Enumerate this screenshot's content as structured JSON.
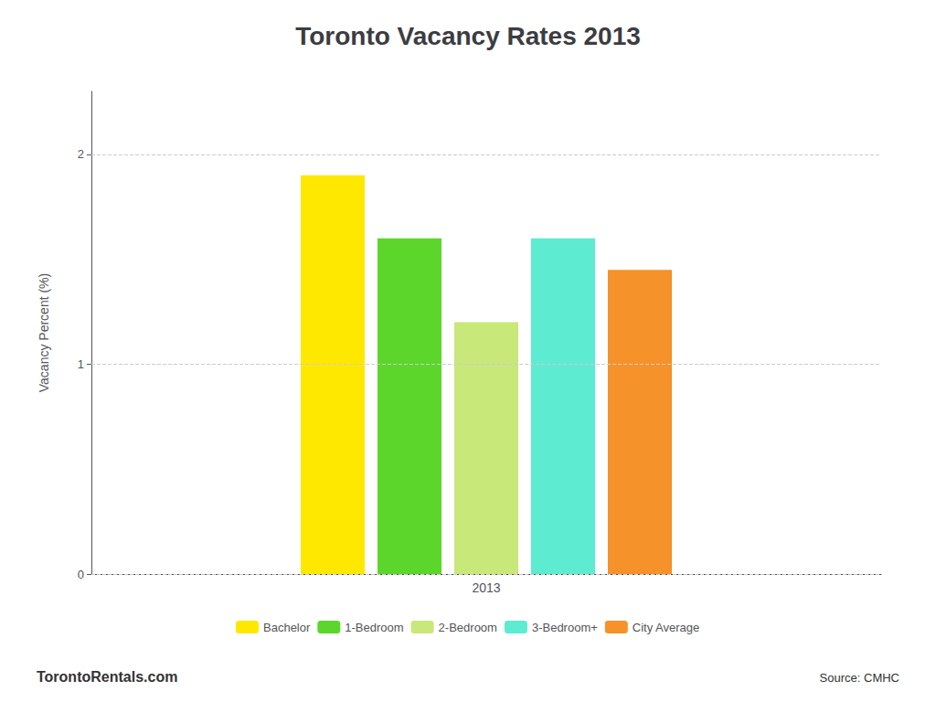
{
  "chart_data": {
    "type": "bar",
    "title": "Toronto Vacancy Rates 2013",
    "categories": [
      "2013"
    ],
    "series": [
      {
        "name": "Bachelor",
        "color": "#FFE800",
        "values": [
          1.9
        ]
      },
      {
        "name": "1-Bedroom",
        "color": "#5CD62B",
        "values": [
          1.6
        ]
      },
      {
        "name": "2-Bedroom",
        "color": "#C8E87A",
        "values": [
          1.2
        ]
      },
      {
        "name": "3-Bedroom+",
        "color": "#5DEBD1",
        "values": [
          1.6
        ]
      },
      {
        "name": "City Average",
        "color": "#F5922A",
        "values": [
          1.45
        ]
      }
    ],
    "ylabel": "Vacancy Percent (%)",
    "ylim": [
      0,
      2.3
    ],
    "yticks": [
      0,
      1,
      2
    ],
    "grid": true,
    "legend": "bottom",
    "annotations": [
      "TorontoRentals.com",
      "Source: CMHC"
    ]
  }
}
